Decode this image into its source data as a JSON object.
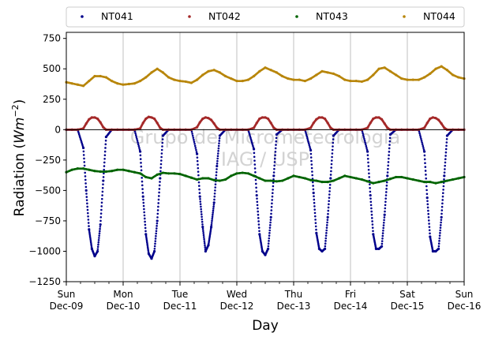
{
  "chart_data": {
    "type": "scatter",
    "title": "",
    "xlabel": "Day",
    "ylabel_main": "Radiation (",
    "ylabel_unit_italic": "Wm",
    "ylabel_exp": "−2",
    "ylabel_close": ")",
    "ylim": [
      -1250,
      800
    ],
    "yticks": [
      750,
      500,
      250,
      0,
      -250,
      -500,
      -750,
      -1000,
      -1250
    ],
    "ytick_labels": [
      "750",
      "500",
      "250",
      "0",
      "−250",
      "−500",
      "−750",
      "−1000",
      "−1250"
    ],
    "xlim": [
      0,
      7
    ],
    "xticks": [
      {
        "day": "Sun",
        "date": "Dec-09"
      },
      {
        "day": "Mon",
        "date": "Dec-10"
      },
      {
        "day": "Tue",
        "date": "Dec-11"
      },
      {
        "day": "Wed",
        "date": "Dec-12"
      },
      {
        "day": "Thu",
        "date": "Dec-13"
      },
      {
        "day": "Fri",
        "date": "Dec-14"
      },
      {
        "day": "Sat",
        "date": "Dec-15"
      },
      {
        "day": "Sun",
        "date": "Dec-16"
      }
    ],
    "grid": "vertical",
    "legend_position": "top",
    "watermark_line1": "Grupo de Micrometeorologia",
    "watermark_line2": "IAG / USP",
    "series": [
      {
        "name": "NT041",
        "color": "#00008b",
        "x": [
          0.0,
          0.1,
          0.2,
          0.3,
          0.35,
          0.4,
          0.45,
          0.5,
          0.55,
          0.6,
          0.65,
          0.7,
          0.8,
          0.9,
          1.0,
          1.1,
          1.2,
          1.3,
          1.35,
          1.4,
          1.45,
          1.5,
          1.55,
          1.6,
          1.65,
          1.7,
          1.8,
          1.9,
          2.0,
          2.1,
          2.2,
          2.3,
          2.35,
          2.4,
          2.45,
          2.5,
          2.55,
          2.6,
          2.65,
          2.7,
          2.8,
          2.9,
          3.0,
          3.1,
          3.2,
          3.3,
          3.35,
          3.4,
          3.45,
          3.5,
          3.55,
          3.6,
          3.65,
          3.7,
          3.8,
          3.9,
          4.0,
          4.1,
          4.2,
          4.3,
          4.35,
          4.4,
          4.45,
          4.5,
          4.55,
          4.6,
          4.65,
          4.7,
          4.8,
          4.9,
          5.0,
          5.1,
          5.2,
          5.3,
          5.35,
          5.4,
          5.45,
          5.5,
          5.55,
          5.6,
          5.65,
          5.7,
          5.8,
          5.9,
          6.0,
          6.1,
          6.2,
          6.3,
          6.35,
          6.4,
          6.45,
          6.5,
          6.55,
          6.6,
          6.65,
          6.7,
          6.8,
          6.9,
          7.0
        ],
        "y": [
          0,
          0,
          0,
          -150,
          -500,
          -820,
          -980,
          -1040,
          -1000,
          -780,
          -420,
          -60,
          0,
          0,
          0,
          0,
          0,
          -180,
          -550,
          -860,
          -1020,
          -1060,
          -1000,
          -750,
          -400,
          -50,
          0,
          0,
          0,
          0,
          0,
          -200,
          -550,
          -800,
          -1000,
          -950,
          -800,
          -600,
          -300,
          -50,
          0,
          0,
          0,
          0,
          0,
          -160,
          -540,
          -860,
          -1000,
          -1030,
          -980,
          -720,
          -380,
          -40,
          0,
          0,
          0,
          0,
          0,
          -170,
          -520,
          -850,
          -980,
          -1000,
          -980,
          -720,
          -400,
          -50,
          0,
          0,
          0,
          0,
          0,
          -180,
          -540,
          -860,
          -980,
          -980,
          -960,
          -700,
          -380,
          -40,
          0,
          0,
          0,
          0,
          0,
          -180,
          -560,
          -880,
          -1000,
          -1000,
          -980,
          -720,
          -380,
          -50,
          0,
          0,
          0
        ]
      },
      {
        "name": "NT042",
        "color": "#a52a2a",
        "x": [
          0.0,
          0.1,
          0.2,
          0.3,
          0.35,
          0.4,
          0.45,
          0.5,
          0.55,
          0.6,
          0.65,
          0.7,
          0.8,
          0.9,
          1.0,
          1.1,
          1.2,
          1.3,
          1.35,
          1.4,
          1.45,
          1.5,
          1.55,
          1.6,
          1.65,
          1.7,
          1.8,
          1.9,
          2.0,
          2.1,
          2.2,
          2.3,
          2.35,
          2.4,
          2.45,
          2.5,
          2.55,
          2.6,
          2.65,
          2.7,
          2.8,
          2.9,
          3.0,
          3.1,
          3.2,
          3.3,
          3.35,
          3.4,
          3.45,
          3.5,
          3.55,
          3.6,
          3.65,
          3.7,
          3.8,
          3.9,
          4.0,
          4.1,
          4.2,
          4.3,
          4.35,
          4.4,
          4.45,
          4.5,
          4.55,
          4.6,
          4.65,
          4.7,
          4.8,
          4.9,
          5.0,
          5.1,
          5.2,
          5.3,
          5.35,
          5.4,
          5.45,
          5.5,
          5.55,
          5.6,
          5.65,
          5.7,
          5.8,
          5.9,
          6.0,
          6.1,
          6.2,
          6.3,
          6.35,
          6.4,
          6.45,
          6.5,
          6.55,
          6.6,
          6.65,
          6.7,
          6.8,
          6.9,
          7.0
        ],
        "y": [
          0,
          0,
          0,
          10,
          50,
          85,
          100,
          100,
          90,
          60,
          20,
          0,
          0,
          0,
          0,
          0,
          0,
          10,
          55,
          90,
          105,
          100,
          90,
          55,
          15,
          0,
          0,
          0,
          0,
          0,
          0,
          20,
          60,
          90,
          100,
          95,
          80,
          50,
          15,
          0,
          0,
          0,
          0,
          0,
          0,
          15,
          55,
          90,
          100,
          100,
          90,
          55,
          15,
          0,
          0,
          0,
          0,
          0,
          0,
          15,
          55,
          85,
          100,
          100,
          90,
          55,
          15,
          0,
          0,
          0,
          0,
          0,
          0,
          15,
          55,
          90,
          100,
          100,
          85,
          50,
          15,
          0,
          0,
          0,
          0,
          0,
          0,
          15,
          55,
          90,
          100,
          95,
          80,
          50,
          15,
          0,
          0,
          0,
          0
        ]
      },
      {
        "name": "NT043",
        "color": "#006400",
        "x": [
          0.0,
          0.1,
          0.2,
          0.3,
          0.4,
          0.5,
          0.6,
          0.7,
          0.8,
          0.9,
          1.0,
          1.1,
          1.2,
          1.3,
          1.4,
          1.5,
          1.6,
          1.7,
          1.8,
          1.9,
          2.0,
          2.1,
          2.2,
          2.3,
          2.4,
          2.5,
          2.6,
          2.7,
          2.8,
          2.9,
          3.0,
          3.1,
          3.2,
          3.3,
          3.4,
          3.5,
          3.6,
          3.7,
          3.8,
          3.9,
          4.0,
          4.1,
          4.2,
          4.3,
          4.4,
          4.5,
          4.6,
          4.7,
          4.8,
          4.9,
          5.0,
          5.1,
          5.2,
          5.3,
          5.4,
          5.5,
          5.6,
          5.7,
          5.8,
          5.9,
          6.0,
          6.1,
          6.2,
          6.3,
          6.4,
          6.5,
          6.6,
          6.7,
          6.8,
          6.9,
          7.0
        ],
        "y": [
          -350,
          -330,
          -320,
          -320,
          -330,
          -340,
          -345,
          -345,
          -340,
          -330,
          -330,
          -340,
          -350,
          -360,
          -390,
          -400,
          -370,
          -355,
          -360,
          -360,
          -365,
          -380,
          -395,
          -410,
          -400,
          -400,
          -415,
          -420,
          -410,
          -380,
          -360,
          -355,
          -360,
          -380,
          -400,
          -420,
          -420,
          -425,
          -420,
          -400,
          -380,
          -390,
          -400,
          -415,
          -420,
          -430,
          -430,
          -420,
          -400,
          -380,
          -390,
          -400,
          -410,
          -425,
          -440,
          -430,
          -420,
          -405,
          -390,
          -390,
          -400,
          -410,
          -420,
          -430,
          -430,
          -440,
          -430,
          -420,
          -410,
          -400,
          -390
        ]
      },
      {
        "name": "NT044",
        "color": "#b8860b",
        "x": [
          0.0,
          0.1,
          0.2,
          0.3,
          0.4,
          0.5,
          0.6,
          0.7,
          0.8,
          0.9,
          1.0,
          1.1,
          1.2,
          1.3,
          1.4,
          1.5,
          1.6,
          1.7,
          1.8,
          1.9,
          2.0,
          2.1,
          2.2,
          2.3,
          2.4,
          2.5,
          2.6,
          2.7,
          2.8,
          2.9,
          3.0,
          3.1,
          3.2,
          3.3,
          3.4,
          3.5,
          3.6,
          3.7,
          3.8,
          3.9,
          4.0,
          4.1,
          4.2,
          4.3,
          4.4,
          4.5,
          4.6,
          4.7,
          4.8,
          4.9,
          5.0,
          5.1,
          5.2,
          5.3,
          5.4,
          5.5,
          5.6,
          5.7,
          5.8,
          5.9,
          6.0,
          6.1,
          6.2,
          6.3,
          6.4,
          6.5,
          6.6,
          6.7,
          6.8,
          6.9,
          7.0
        ],
        "y": [
          390,
          380,
          370,
          360,
          400,
          440,
          440,
          430,
          400,
          380,
          370,
          375,
          380,
          400,
          430,
          470,
          500,
          470,
          430,
          410,
          400,
          395,
          385,
          410,
          450,
          480,
          490,
          470,
          440,
          420,
          400,
          400,
          410,
          440,
          480,
          510,
          490,
          470,
          440,
          420,
          410,
          410,
          400,
          420,
          450,
          480,
          470,
          460,
          440,
          410,
          400,
          400,
          395,
          410,
          450,
          500,
          510,
          480,
          450,
          420,
          410,
          410,
          410,
          430,
          460,
          500,
          520,
          490,
          450,
          430,
          420
        ]
      }
    ]
  }
}
